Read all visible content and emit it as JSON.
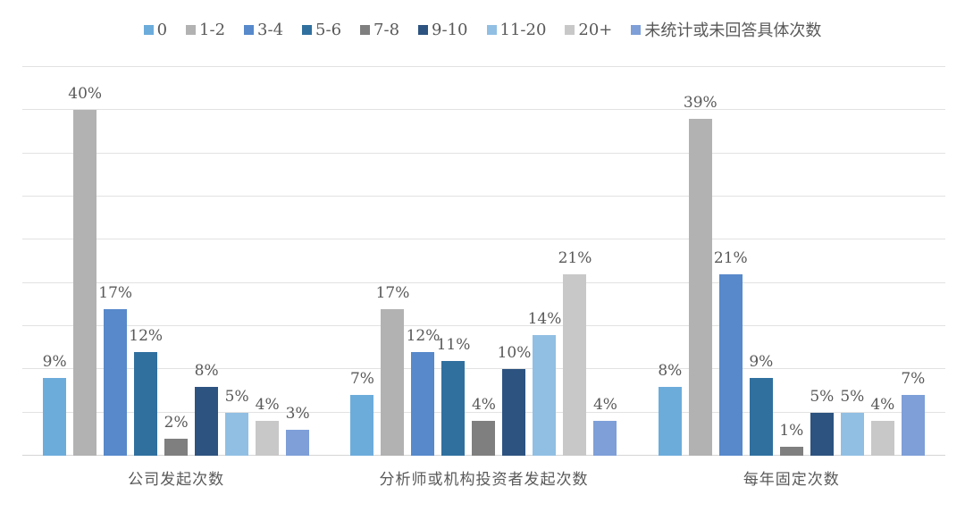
{
  "chart_data": {
    "type": "bar",
    "title": "",
    "xlabel": "",
    "ylabel": "",
    "value_suffix": "%",
    "ylim": [
      0,
      45
    ],
    "grid": true,
    "grid_step": 5,
    "legend_position": "top",
    "categories": [
      "公司发起次数",
      "分析师或机构投资者发起次数",
      "每年固定次数"
    ],
    "series": [
      {
        "name": "0",
        "color": "#6CACDB",
        "values": [
          9,
          7,
          8
        ]
      },
      {
        "name": "1-2",
        "color": "#B2B2B2",
        "values": [
          40,
          17,
          39
        ]
      },
      {
        "name": "3-4",
        "color": "#5789CB",
        "values": [
          17,
          12,
          21
        ]
      },
      {
        "name": "5-6",
        "color": "#30709F",
        "values": [
          12,
          11,
          9
        ]
      },
      {
        "name": "7-8",
        "color": "#7F7F7F",
        "values": [
          2,
          4,
          1
        ]
      },
      {
        "name": "9-10",
        "color": "#2D5380",
        "values": [
          8,
          10,
          5
        ]
      },
      {
        "name": "11-20",
        "color": "#91BFE3",
        "values": [
          5,
          14,
          5
        ]
      },
      {
        "name": "20+",
        "color": "#C8C8C8",
        "values": [
          4,
          21,
          4
        ]
      },
      {
        "name": "未统计或未回答具体次数",
        "color": "#7E9FD8",
        "values": [
          3,
          4,
          7
        ]
      }
    ]
  }
}
